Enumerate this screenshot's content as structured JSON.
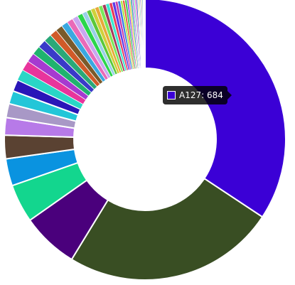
{
  "chart_data": {
    "type": "pie",
    "donut": true,
    "legend": "none",
    "series": [
      {
        "name": "A127",
        "value": 684,
        "color": "#3b00d6"
      },
      {
        "value": 487,
        "color": "#394e23"
      },
      {
        "value": 130,
        "color": "#4a007c"
      },
      {
        "value": 88,
        "color": "#13d68e"
      },
      {
        "value": 62,
        "color": "#0a93e0"
      },
      {
        "value": 54,
        "color": "#5a4232"
      },
      {
        "value": 40,
        "color": "#b77ae8"
      },
      {
        "value": 32,
        "color": "#a898c6"
      },
      {
        "value": 30,
        "color": "#23c6d8"
      },
      {
        "value": 27,
        "color": "#2a16b8"
      },
      {
        "value": 25,
        "color": "#2ad6c6"
      },
      {
        "value": 23,
        "color": "#e8349c"
      },
      {
        "value": 21,
        "color": "#a63ad0"
      },
      {
        "value": 20,
        "color": "#1fb36e"
      },
      {
        "value": 19,
        "color": "#3a3ac8"
      },
      {
        "value": 18,
        "color": "#2aa878"
      },
      {
        "value": 17,
        "color": "#d05a28"
      },
      {
        "value": 16,
        "color": "#7a5a2a"
      },
      {
        "value": 15,
        "color": "#3aa8e0"
      },
      {
        "value": 14,
        "color": "#e86ab8"
      },
      {
        "value": 13,
        "color": "#c8a8f0"
      },
      {
        "value": 12,
        "color": "#2ad64a"
      },
      {
        "value": 11,
        "color": "#9ad0e8"
      },
      {
        "value": 10,
        "color": "#5ac83a"
      },
      {
        "value": 10,
        "color": "#d0d03a"
      },
      {
        "value": 9,
        "color": "#e8a83a"
      },
      {
        "value": 9,
        "color": "#7ae85a"
      },
      {
        "value": 8,
        "color": "#a83a5a"
      },
      {
        "value": 8,
        "color": "#3ae8d0"
      },
      {
        "value": 7,
        "color": "#e83a5a"
      },
      {
        "value": 7,
        "color": "#5a3ae8"
      },
      {
        "value": 6,
        "color": "#c83aa8"
      },
      {
        "value": 6,
        "color": "#3a7ae8"
      },
      {
        "value": 5,
        "color": "#a8e83a"
      },
      {
        "value": 5,
        "color": "#e85a3a"
      },
      {
        "value": 5,
        "color": "#3ac85a"
      },
      {
        "value": 4,
        "color": "#8a3ae8"
      },
      {
        "value": 4,
        "color": "#e8c83a"
      },
      {
        "value": 4,
        "color": "#3aa8a8"
      },
      {
        "value": 3,
        "color": "#a83ae8"
      },
      {
        "value": 3,
        "color": "#5ae8a8"
      },
      {
        "value": 3,
        "color": "#e83ac8"
      },
      {
        "value": 3,
        "color": "#3a5ac8"
      },
      {
        "value": 2,
        "color": "#c8e85a"
      },
      {
        "value": 2,
        "color": "#e87a3a"
      },
      {
        "value": 2,
        "color": "#3ae87a"
      },
      {
        "value": 2,
        "color": "#7a3ac8"
      },
      {
        "value": 2,
        "color": "#a8a83a"
      },
      {
        "value": 2,
        "color": "#3a8ac8"
      },
      {
        "value": 1,
        "color": "#c83a7a"
      },
      {
        "value": 1,
        "color": "#5ac8e8"
      },
      {
        "value": 1,
        "color": "#e8e83a"
      },
      {
        "value": 1,
        "color": "#8ae83a"
      },
      {
        "value": 1,
        "color": "#3a3a8a"
      }
    ]
  },
  "tooltip": {
    "label": "A127: 684",
    "color": "#3b00d6"
  }
}
